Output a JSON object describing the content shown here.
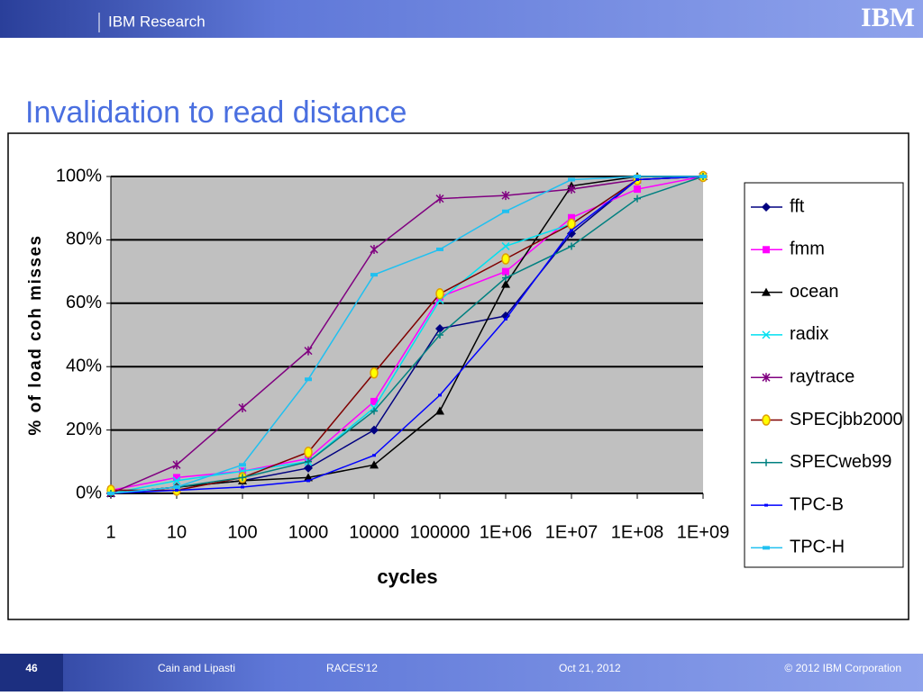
{
  "header": {
    "title": "IBM Research",
    "logo": "IBM"
  },
  "slide_title": "Invalidation to read distance",
  "chart_data": {
    "type": "line",
    "xlabel": "cycles",
    "ylabel": "% of load coh misses",
    "categories": [
      "1",
      "10",
      "100",
      "1000",
      "10000",
      "100000",
      "1E+06",
      "1E+07",
      "1E+08",
      "1E+09"
    ],
    "ylim": [
      0,
      100
    ],
    "yticks": [
      {
        "value": 0,
        "label": "0%"
      },
      {
        "value": 20,
        "label": "20%"
      },
      {
        "value": 40,
        "label": "40%"
      },
      {
        "value": 60,
        "label": "60%"
      },
      {
        "value": 80,
        "label": "80%"
      },
      {
        "value": 100,
        "label": "100%"
      }
    ],
    "grid": true,
    "legend": "right",
    "series": [
      {
        "name": "fft",
        "color": "#000080",
        "marker": "diamond",
        "values": [
          0,
          2,
          4,
          8,
          20,
          52,
          56,
          82,
          99,
          100
        ]
      },
      {
        "name": "fmm",
        "color": "#ff00ff",
        "marker": "square",
        "values": [
          1,
          5,
          7,
          11,
          29,
          62,
          70,
          87,
          96,
          100
        ]
      },
      {
        "name": "ocean",
        "color": "#000000",
        "marker": "triangle",
        "values": [
          0,
          2,
          4,
          5,
          9,
          26,
          66,
          97,
          100,
          100
        ]
      },
      {
        "name": "radix",
        "color": "#00e0f0",
        "marker": "x",
        "values": [
          0,
          4,
          7,
          10,
          27,
          61,
          78,
          85,
          99,
          100
        ]
      },
      {
        "name": "raytrace",
        "color": "#800080",
        "marker": "star",
        "values": [
          0,
          9,
          27,
          45,
          77,
          93,
          94,
          96,
          99,
          100
        ]
      },
      {
        "name": "SPECjbb2000",
        "color": "#800000",
        "marker": "circle",
        "values": [
          1,
          1,
          5,
          13,
          38,
          63,
          74,
          85,
          99,
          100
        ]
      },
      {
        "name": "SPECweb99",
        "color": "#008080",
        "marker": "plus",
        "values": [
          0,
          2,
          5,
          10,
          26,
          50,
          68,
          78,
          93,
          100
        ]
      },
      {
        "name": "TPC-B",
        "color": "#0000ff",
        "marker": "dash",
        "values": [
          0,
          1,
          2,
          4,
          12,
          31,
          55,
          83,
          99,
          100
        ]
      },
      {
        "name": "TPC-H",
        "color": "#20c0f0",
        "marker": "rect",
        "values": [
          0,
          2,
          9,
          36,
          69,
          77,
          89,
          99,
          100,
          100
        ]
      }
    ]
  },
  "footer": {
    "page": "46",
    "authors": "Cain and Lipasti",
    "venue": "RACES'12",
    "date": "Oct 21, 2012",
    "copyright": "© 2012 IBM Corporation"
  }
}
